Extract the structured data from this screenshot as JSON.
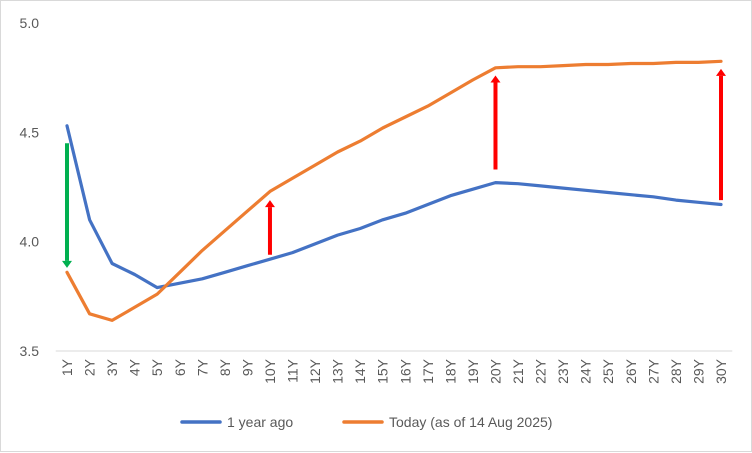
{
  "chart_data": {
    "type": "line",
    "title": "",
    "xlabel": "",
    "ylabel": "",
    "ylim": [
      3.5,
      5.0
    ],
    "yticks": [
      "3.5",
      "4.0",
      "4.5",
      "5.0"
    ],
    "grid": false,
    "legend_position": "bottom",
    "categories": [
      "1Y",
      "2Y",
      "3Y",
      "4Y",
      "5Y",
      "6Y",
      "7Y",
      "8Y",
      "9Y",
      "10Y",
      "11Y",
      "12Y",
      "13Y",
      "14Y",
      "15Y",
      "16Y",
      "17Y",
      "18Y",
      "19Y",
      "20Y",
      "21Y",
      "22Y",
      "23Y",
      "24Y",
      "25Y",
      "26Y",
      "27Y",
      "28Y",
      "29Y",
      "30Y"
    ],
    "series": [
      {
        "name": "1 year ago",
        "color": "#4472c4",
        "values": [
          4.53,
          4.1,
          3.9,
          3.85,
          3.79,
          3.81,
          3.83,
          3.86,
          3.89,
          3.92,
          3.95,
          3.99,
          4.03,
          4.06,
          4.1,
          4.13,
          4.17,
          4.21,
          4.24,
          4.27,
          4.265,
          4.255,
          4.245,
          4.235,
          4.225,
          4.215,
          4.205,
          4.19,
          4.18,
          4.17
        ]
      },
      {
        "name": "Today (as of 14 Aug 2025)",
        "color": "#ed7d31",
        "values": [
          3.86,
          3.67,
          3.64,
          3.7,
          3.76,
          3.86,
          3.96,
          4.05,
          4.14,
          4.23,
          4.29,
          4.35,
          4.41,
          4.46,
          4.52,
          4.57,
          4.62,
          4.68,
          4.74,
          4.795,
          4.8,
          4.8,
          4.805,
          4.81,
          4.81,
          4.815,
          4.815,
          4.82,
          4.82,
          4.825
        ]
      }
    ],
    "annotations": [
      {
        "type": "arrow",
        "color": "#00b050",
        "category": "1Y",
        "from": 4.45,
        "to": 3.88
      },
      {
        "type": "arrow",
        "color": "#ff0000",
        "category": "10Y",
        "from": 3.94,
        "to": 4.19
      },
      {
        "type": "arrow",
        "color": "#ff0000",
        "category": "20Y",
        "from": 4.33,
        "to": 4.76
      },
      {
        "type": "arrow",
        "color": "#ff0000",
        "category": "30Y",
        "from": 4.19,
        "to": 4.79
      }
    ]
  }
}
